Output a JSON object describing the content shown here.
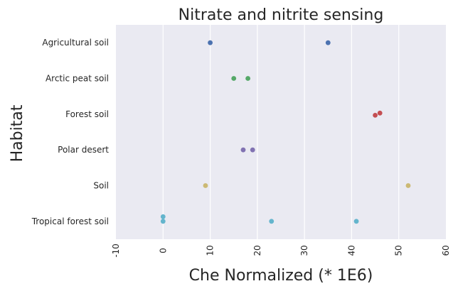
{
  "chart_data": {
    "type": "scatter",
    "title": "Nitrate and nitrite sensing",
    "xlabel": "Che Normalized (* 1E6)",
    "ylabel": "Habitat",
    "xlim": [
      -10,
      60
    ],
    "xticks": [
      -10,
      0,
      10,
      20,
      30,
      40,
      50,
      60
    ],
    "grid": "vertical",
    "categories": [
      "Agricultural soil",
      "Arctic peat soil",
      "Forest soil",
      "Polar desert",
      "Soil",
      "Tropical forest soil"
    ],
    "series": [
      {
        "category": "Agricultural soil",
        "color": "#4c72b0",
        "points": [
          {
            "x": 10.0,
            "jitter": 0.0
          },
          {
            "x": 35.0,
            "jitter": 0.0
          }
        ]
      },
      {
        "category": "Arctic peat soil",
        "color": "#55a868",
        "points": [
          {
            "x": 15.0,
            "jitter": 0.0
          },
          {
            "x": 18.0,
            "jitter": 0.0
          }
        ]
      },
      {
        "category": "Forest soil",
        "color": "#c44e52",
        "points": [
          {
            "x": 45.0,
            "jitter": 0.03
          },
          {
            "x": 46.0,
            "jitter": -0.03
          }
        ]
      },
      {
        "category": "Polar desert",
        "color": "#8172b2",
        "points": [
          {
            "x": 17.0,
            "jitter": 0.0
          },
          {
            "x": 19.0,
            "jitter": 0.0
          }
        ]
      },
      {
        "category": "Soil",
        "color": "#ccb974",
        "points": [
          {
            "x": 9.0,
            "jitter": 0.0
          },
          {
            "x": 52.0,
            "jitter": 0.0
          }
        ]
      },
      {
        "category": "Tropical forest soil",
        "color": "#64b5cd",
        "points": [
          {
            "x": 0.0,
            "jitter": -0.13
          },
          {
            "x": 0.0,
            "jitter": 0.0
          },
          {
            "x": 23.0,
            "jitter": 0.0
          },
          {
            "x": 41.0,
            "jitter": 0.0
          }
        ]
      }
    ]
  }
}
